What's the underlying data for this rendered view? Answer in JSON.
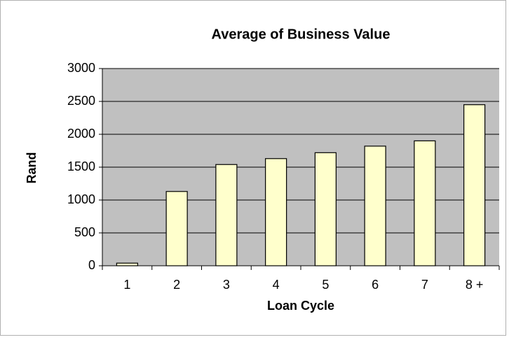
{
  "chart_data": {
    "type": "bar",
    "title": "Average of Business Value",
    "x_label": "Loan Cycle",
    "y_label": "Rand",
    "categories": [
      "1",
      "2",
      "3",
      "4",
      "5",
      "6",
      "7",
      "8 +"
    ],
    "values": [
      40,
      1130,
      1540,
      1630,
      1720,
      1820,
      1900,
      2450
    ],
    "color": "#ffffcc",
    "plot_background": "#c0c0c0",
    "ylim": [
      0,
      3000
    ],
    "yticks": [
      0,
      500,
      1000,
      1500,
      2000,
      2500,
      3000
    ],
    "grid": true
  }
}
